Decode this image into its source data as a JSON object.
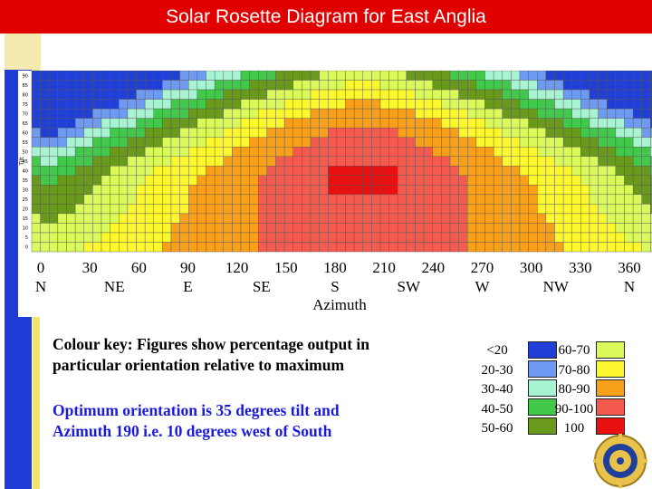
{
  "slide": {
    "title": "Solar Rosette Diagram for East Anglia",
    "key_text": "Colour key: Figures show percentage output in particular orientation relative to maximum",
    "optimum_text": "Optimum orientation is 35 degrees tilt and Azimuth 190   i.e. 10 degrees west of South"
  },
  "colors": {
    "band_lt20": "#1f3fd6",
    "band_20_30": "#6f9af2",
    "band_30_40": "#a8f4d2",
    "band_40_50": "#42c84a",
    "band_50_60": "#6a9a1c",
    "band_60_70": "#d9fa5a",
    "band_70_80": "#fdf72e",
    "band_80_90": "#f8a01a",
    "band_90_100": "#f45a4e",
    "band_100": "#e81010",
    "title_bg": "#e10000"
  },
  "chart_data": {
    "type": "heatmap",
    "title": "",
    "xlabel": "Azimuth",
    "ylabel": "Tilt",
    "x_ticks": [
      {
        "value": 0,
        "label": "0",
        "dir": "N"
      },
      {
        "value": 30,
        "label": "30",
        "dir": ""
      },
      {
        "value": 45,
        "label": "",
        "dir": "NE"
      },
      {
        "value": 60,
        "label": "60",
        "dir": ""
      },
      {
        "value": 90,
        "label": "90",
        "dir": "E"
      },
      {
        "value": 120,
        "label": "120",
        "dir": ""
      },
      {
        "value": 135,
        "label": "",
        "dir": "SE"
      },
      {
        "value": 150,
        "label": "150",
        "dir": ""
      },
      {
        "value": 180,
        "label": "180",
        "dir": "S"
      },
      {
        "value": 210,
        "label": "210",
        "dir": ""
      },
      {
        "value": 225,
        "label": "",
        "dir": "SW"
      },
      {
        "value": 240,
        "label": "240",
        "dir": ""
      },
      {
        "value": 270,
        "label": "270",
        "dir": "W"
      },
      {
        "value": 300,
        "label": "300",
        "dir": ""
      },
      {
        "value": 315,
        "label": "",
        "dir": "NW"
      },
      {
        "value": 330,
        "label": "330",
        "dir": ""
      },
      {
        "value": 360,
        "label": "360",
        "dir": "N"
      }
    ],
    "y_ticks": [
      "0",
      "5",
      "10",
      "15",
      "20",
      "25",
      "30",
      "35",
      "40",
      "45",
      "50",
      "55",
      "60",
      "65",
      "70",
      "75",
      "80",
      "85",
      "90"
    ],
    "xlim": [
      0,
      360
    ],
    "ylim": [
      0,
      90
    ],
    "peak": {
      "azimuth": 190,
      "tilt": 35
    },
    "band_edges_tilt": [
      {
        "band": "100",
        "halfwidth": 20,
        "tilt_low": 30,
        "tilt_high": 40
      },
      {
        "band": "90-100",
        "min_level": 90
      },
      {
        "band": "80-90",
        "min_level": 80
      },
      {
        "band": "70-80",
        "min_level": 70
      },
      {
        "band": "60-70",
        "min_level": 60
      },
      {
        "band": "50-60",
        "min_level": 50
      },
      {
        "band": "40-50",
        "min_level": 40
      },
      {
        "band": "30-40",
        "min_level": 30
      },
      {
        "band": "20-30",
        "min_level": 20
      },
      {
        "band": "<20",
        "min_level": 0
      }
    ],
    "legend_left": [
      "<20",
      "20-30",
      "30-40",
      "40-50",
      "50-60"
    ],
    "legend_right": [
      "60-70",
      "70-80",
      "80-90",
      "90-100",
      "100"
    ]
  }
}
